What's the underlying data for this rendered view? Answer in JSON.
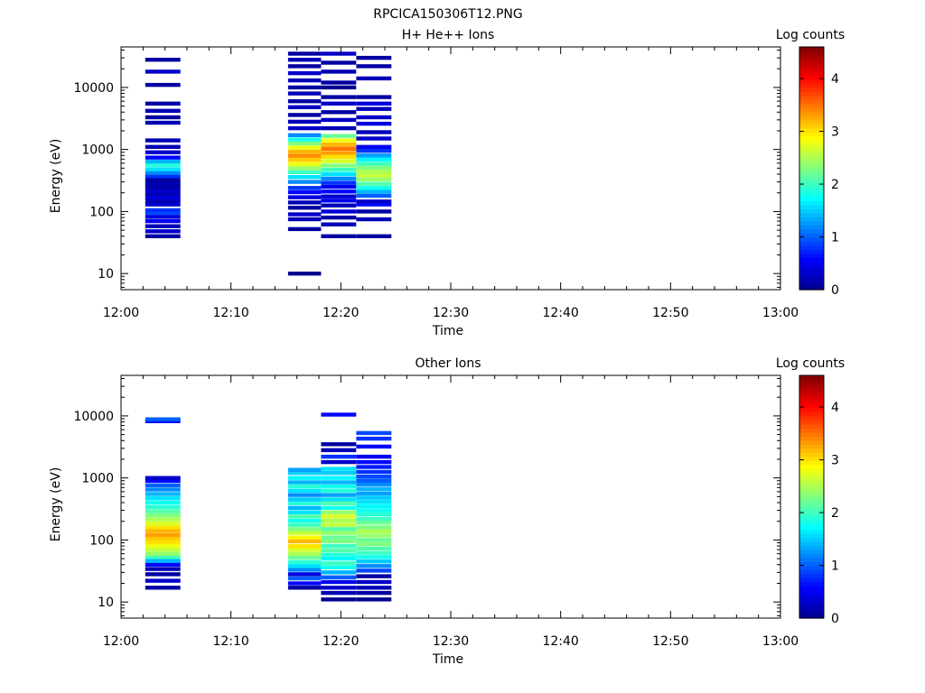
{
  "figure_title": "RPCICA150306T12.PNG",
  "colormap": [
    "#00008f",
    "#0000ff",
    "#0080ff",
    "#00ffff",
    "#80ff80",
    "#ffff00",
    "#ff8000",
    "#ff0000",
    "#800000"
  ],
  "chart_data": [
    {
      "type": "heatmap",
      "title": "H+ He++ Ions",
      "xlabel": "Time",
      "ylabel": "Energy (eV)",
      "colorbar_label": "Log counts",
      "x_ticks": [
        "12:00",
        "12:10",
        "12:20",
        "12:30",
        "12:40",
        "12:50",
        "13:00"
      ],
      "xlim_minutes": [
        0,
        60
      ],
      "y_scale": "log",
      "y_ticks": [
        "10",
        "100",
        "1000",
        "10000"
      ],
      "ylim": [
        5.5,
        45000
      ],
      "clim": [
        0,
        4.6
      ],
      "colorbar_ticks": [
        "0",
        "1",
        "2",
        "3",
        "4"
      ],
      "columns": [
        {
          "t0": 2.2,
          "t1": 5.4,
          "bins": [
            [
              40,
              0.1
            ],
            [
              48,
              0.3
            ],
            [
              58,
              0.2
            ],
            [
              70,
              0.5
            ],
            [
              82,
              0.4
            ],
            [
              95,
              0.9
            ],
            [
              105,
              0.8
            ],
            [
              130,
              0.3
            ],
            [
              150,
              0.2
            ],
            [
              170,
              0.4
            ],
            [
              190,
              0.2
            ],
            [
              220,
              0.3
            ],
            [
              250,
              0.1
            ],
            [
              280,
              0.2
            ],
            [
              320,
              0.1
            ],
            [
              370,
              0.8
            ],
            [
              420,
              1.2
            ],
            [
              480,
              1.6
            ],
            [
              560,
              1.9
            ],
            [
              640,
              1.4
            ],
            [
              740,
              0.6
            ],
            [
              900,
              0.3
            ],
            [
              1100,
              0.2
            ],
            [
              1400,
              0.2
            ],
            [
              2700,
              0.2
            ],
            [
              3300,
              0.1
            ],
            [
              4200,
              0.2
            ],
            [
              5500,
              0.1
            ],
            [
              11000,
              0.1
            ],
            [
              18000,
              0.3
            ],
            [
              28000,
              0.1
            ]
          ]
        },
        {
          "t0": 15.2,
          "t1": 18.2,
          "bins": [
            [
              10,
              0.0
            ],
            [
              52,
              0.1
            ],
            [
              75,
              0.2
            ],
            [
              90,
              0.3
            ],
            [
              115,
              0.1
            ],
            [
              140,
              0.2
            ],
            [
              170,
              0.4
            ],
            [
              205,
              0.6
            ],
            [
              240,
              0.8
            ],
            [
              300,
              1.2
            ],
            [
              360,
              1.6
            ],
            [
              430,
              2.0
            ],
            [
              500,
              2.4
            ],
            [
              580,
              2.8
            ],
            [
              680,
              3.1
            ],
            [
              790,
              3.4
            ],
            [
              920,
              3.2
            ],
            [
              1070,
              2.8
            ],
            [
              1250,
              2.3
            ],
            [
              1450,
              1.8
            ],
            [
              1700,
              1.2
            ],
            [
              2200,
              0.3
            ],
            [
              2800,
              0.2
            ],
            [
              3600,
              0.1
            ],
            [
              4800,
              0.3
            ],
            [
              6000,
              0.1
            ],
            [
              8000,
              0.2
            ],
            [
              10000,
              0.1
            ],
            [
              13000,
              0.2
            ],
            [
              17000,
              0.3
            ],
            [
              22000,
              0.1
            ],
            [
              28000,
              0.2
            ],
            [
              35000,
              0.1
            ]
          ]
        },
        {
          "t0": 18.2,
          "t1": 21.4,
          "bins": [
            [
              40,
              0.1
            ],
            [
              62,
              0.2
            ],
            [
              80,
              0.1
            ],
            [
              100,
              0.4
            ],
            [
              125,
              0.2
            ],
            [
              150,
              0.5
            ],
            [
              175,
              0.3
            ],
            [
              210,
              0.6
            ],
            [
              250,
              0.5
            ],
            [
              290,
              0.8
            ],
            [
              340,
              1.2
            ],
            [
              400,
              1.6
            ],
            [
              470,
              2.0
            ],
            [
              550,
              2.3
            ],
            [
              650,
              2.7
            ],
            [
              760,
              3.0
            ],
            [
              880,
              3.3
            ],
            [
              1030,
              3.5
            ],
            [
              1200,
              3.2
            ],
            [
              1400,
              2.8
            ],
            [
              1650,
              2.2
            ],
            [
              2200,
              0.2
            ],
            [
              3000,
              0.3
            ],
            [
              4000,
              0.1
            ],
            [
              5500,
              0.3
            ],
            [
              7000,
              0.1
            ],
            [
              10000,
              0.0
            ],
            [
              12000,
              0.1
            ],
            [
              18000,
              0.2
            ],
            [
              25000,
              0.1
            ],
            [
              35000,
              0.3
            ]
          ]
        },
        {
          "t0": 21.4,
          "t1": 24.6,
          "bins": [
            [
              40,
              0.1
            ],
            [
              75,
              0.2
            ],
            [
              100,
              0.1
            ],
            [
              130,
              0.6
            ],
            [
              145,
              0.3
            ],
            [
              180,
              1.0
            ],
            [
              210,
              1.4
            ],
            [
              240,
              1.8
            ],
            [
              280,
              2.1
            ],
            [
              330,
              2.4
            ],
            [
              380,
              2.6
            ],
            [
              440,
              2.5
            ],
            [
              510,
              2.3
            ],
            [
              590,
              2.0
            ],
            [
              690,
              1.7
            ],
            [
              800,
              1.3
            ],
            [
              950,
              0.8
            ],
            [
              1100,
              0.5
            ],
            [
              1500,
              0.3
            ],
            [
              1900,
              0.2
            ],
            [
              2600,
              0.4
            ],
            [
              3300,
              0.3
            ],
            [
              4500,
              0.2
            ],
            [
              5500,
              0.4
            ],
            [
              7000,
              0.1
            ],
            [
              14000,
              0.2
            ],
            [
              22000,
              0.1
            ],
            [
              30000,
              0.1
            ]
          ]
        }
      ]
    },
    {
      "type": "heatmap",
      "title": "Other Ions",
      "xlabel": "Time",
      "ylabel": "Energy (eV)",
      "colorbar_label": "Log counts",
      "x_ticks": [
        "12:00",
        "12:10",
        "12:20",
        "12:30",
        "12:40",
        "12:50",
        "13:00"
      ],
      "xlim_minutes": [
        0,
        60
      ],
      "y_scale": "log",
      "y_ticks": [
        "10",
        "100",
        "1000",
        "10000"
      ],
      "ylim": [
        5.5,
        45000
      ],
      "clim": [
        0,
        4.6
      ],
      "colorbar_ticks": [
        "0",
        "1",
        "2",
        "3",
        "4"
      ],
      "columns": [
        {
          "t0": 2.2,
          "t1": 5.4,
          "bins": [
            [
              17,
              0.1
            ],
            [
              22,
              0.3
            ],
            [
              28,
              0.1
            ],
            [
              34,
              0.2
            ],
            [
              40,
              0.6
            ],
            [
              46,
              1.4
            ],
            [
              53,
              2.0
            ],
            [
              60,
              2.4
            ],
            [
              70,
              2.6
            ],
            [
              80,
              2.8
            ],
            [
              92,
              3.0
            ],
            [
              105,
              3.1
            ],
            [
              120,
              3.3
            ],
            [
              140,
              3.2
            ],
            [
              160,
              3.0
            ],
            [
              185,
              2.7
            ],
            [
              215,
              2.5
            ],
            [
              250,
              2.3
            ],
            [
              290,
              2.1
            ],
            [
              340,
              1.9
            ],
            [
              400,
              1.8
            ],
            [
              470,
              1.6
            ],
            [
              550,
              1.4
            ],
            [
              650,
              1.2
            ],
            [
              760,
              1.0
            ],
            [
              900,
              0.6
            ],
            [
              1000,
              0.3
            ],
            [
              8200,
              0.6
            ],
            [
              8800,
              1.0
            ]
          ]
        },
        {
          "t0": 15.2,
          "t1": 18.2,
          "bins": [
            [
              17,
              0.1
            ],
            [
              20,
              0.6
            ],
            [
              24,
              1.0
            ],
            [
              28,
              0.4
            ],
            [
              33,
              1.2
            ],
            [
              38,
              1.6
            ],
            [
              44,
              1.9
            ],
            [
              52,
              2.2
            ],
            [
              60,
              2.5
            ],
            [
              70,
              2.7
            ],
            [
              80,
              3.0
            ],
            [
              95,
              3.2
            ],
            [
              110,
              2.9
            ],
            [
              130,
              2.6
            ],
            [
              150,
              2.3
            ],
            [
              175,
              2.0
            ],
            [
              205,
              1.8
            ],
            [
              240,
              2.1
            ],
            [
              280,
              1.6
            ],
            [
              330,
              1.4
            ],
            [
              390,
              1.9
            ],
            [
              450,
              1.5
            ],
            [
              530,
              1.2
            ],
            [
              620,
              1.6
            ],
            [
              730,
              1.9
            ],
            [
              850,
              1.4
            ],
            [
              1000,
              1.7
            ],
            [
              1200,
              1.5
            ],
            [
              1350,
              1.3
            ]
          ]
        },
        {
          "t0": 18.2,
          "t1": 21.4,
          "bins": [
            [
              11,
              0.0
            ],
            [
              14,
              0.2
            ],
            [
              17,
              0.3
            ],
            [
              21,
              0.5
            ],
            [
              25,
              1.0
            ],
            [
              30,
              1.4
            ],
            [
              36,
              1.8
            ],
            [
              42,
              2.0
            ],
            [
              50,
              1.7
            ],
            [
              58,
              1.9
            ],
            [
              68,
              2.1
            ],
            [
              80,
              2.0
            ],
            [
              95,
              2.3
            ],
            [
              110,
              2.2
            ],
            [
              130,
              2.4
            ],
            [
              150,
              2.1
            ],
            [
              175,
              2.6
            ],
            [
              205,
              2.5
            ],
            [
              240,
              2.7
            ],
            [
              280,
              2.4
            ],
            [
              330,
              1.8
            ],
            [
              390,
              2.1
            ],
            [
              450,
              1.6
            ],
            [
              530,
              1.3
            ],
            [
              620,
              1.9
            ],
            [
              730,
              1.8
            ],
            [
              850,
              1.4
            ],
            [
              1000,
              1.7
            ],
            [
              1200,
              1.5
            ],
            [
              1400,
              1.6
            ],
            [
              1800,
              0.3
            ],
            [
              2200,
              0.8
            ],
            [
              2800,
              0.2
            ],
            [
              3500,
              0.1
            ],
            [
              10500,
              0.6
            ]
          ]
        },
        {
          "t0": 21.4,
          "t1": 24.6,
          "bins": [
            [
              11,
              0.0
            ],
            [
              14,
              0.1
            ],
            [
              17,
              0.2
            ],
            [
              21,
              0.3
            ],
            [
              26,
              0.1
            ],
            [
              32,
              0.9
            ],
            [
              38,
              1.2
            ],
            [
              45,
              1.5
            ],
            [
              53,
              1.8
            ],
            [
              62,
              2.0
            ],
            [
              73,
              2.1
            ],
            [
              86,
              2.3
            ],
            [
              100,
              2.2
            ],
            [
              118,
              2.4
            ],
            [
              138,
              2.5
            ],
            [
              160,
              2.3
            ],
            [
              190,
              2.2
            ],
            [
              220,
              2.0
            ],
            [
              260,
              1.9
            ],
            [
              300,
              1.8
            ],
            [
              350,
              1.7
            ],
            [
              410,
              1.6
            ],
            [
              480,
              1.5
            ],
            [
              560,
              1.3
            ],
            [
              660,
              1.4
            ],
            [
              780,
              1.2
            ],
            [
              900,
              1.0
            ],
            [
              1050,
              0.9
            ],
            [
              1250,
              0.8
            ],
            [
              1500,
              0.7
            ],
            [
              1800,
              0.6
            ],
            [
              2200,
              0.5
            ],
            [
              3200,
              0.6
            ],
            [
              4300,
              0.8
            ],
            [
              5300,
              0.9
            ]
          ]
        }
      ]
    }
  ]
}
